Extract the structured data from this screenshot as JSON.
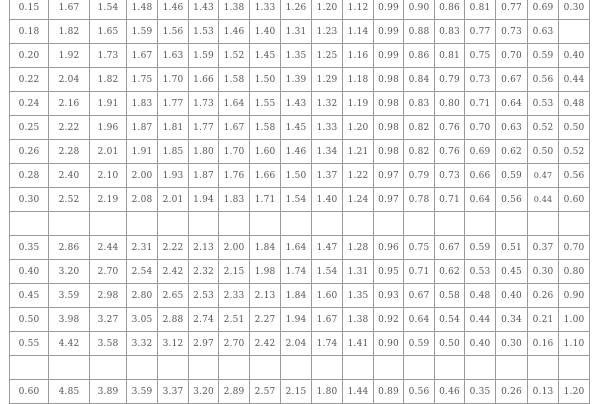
{
  "table": {
    "rows": [
      [
        "0.15",
        "1.67",
        "1.54",
        "1.48",
        "1.46",
        "1.43",
        "1.38",
        "1.33",
        "1.26",
        "1.20",
        "1.12",
        "0.99",
        "0.90",
        "0.86",
        "0.81",
        "0.77",
        "0.69",
        "0.30"
      ],
      [
        "0.18",
        "1.82",
        "1.65",
        "1.59",
        "1.56",
        "1.53",
        "1.46",
        "1.40",
        "1.31",
        "1.23",
        "1.14",
        "0.99",
        "0.88",
        "0.83",
        "0.77",
        "0.73",
        "0.63",
        ""
      ],
      [
        "0.20",
        "1.92",
        "1.73",
        "1.67",
        "1.63",
        "1.59",
        "1.52",
        "1.45",
        "1.35",
        "1.25",
        "1.16",
        "0.99",
        "0.86",
        "0.81",
        "0.75",
        "0.70",
        "0.59",
        "0.40"
      ],
      [
        "0.22",
        "2.04",
        "1.82",
        "1.75",
        "1.70",
        "1.66",
        "1.58",
        "1.50",
        "1.39",
        "1.29",
        "1.18",
        "0.98",
        "0.84",
        "0.79",
        "0.73",
        "0.67",
        "0.56",
        "0.44"
      ],
      [
        "0.24",
        "2.16",
        "1.91",
        "1.83",
        "1.77",
        "1.73",
        "1.64",
        "1.55",
        "1.43",
        "1.32",
        "1.19",
        "0.98",
        "0.83",
        "0.80",
        "0.71",
        "0.64",
        "0.53",
        "0.48"
      ],
      [
        "0.25",
        "2.22",
        "1.96",
        "1.87",
        "1.81",
        "1.77",
        "1.67",
        "1.58",
        "1.45",
        "1.33",
        "1.20",
        "0.98",
        "0.82",
        "0.76",
        "0.70",
        "0.63",
        "0.52",
        "0.50"
      ],
      [
        "0.26",
        "2.28",
        "2.01",
        "1.91",
        "1.85",
        "1.80",
        "1.70",
        "1.60",
        "1.46",
        "1.34",
        "1.21",
        "0.98",
        "0.82",
        "0.76",
        "0.69",
        "0.62",
        "0.50",
        "0.52"
      ],
      [
        "0.28",
        "2.40",
        "2.10",
        "2.00",
        "1.93",
        "1.87",
        "1.76",
        "1.66",
        "1.50",
        "1.37",
        "1.22",
        "0.97",
        "0.79",
        "0.73",
        "0.66",
        "0.59",
        "0.47",
        "0.56"
      ],
      [
        "0.30",
        "2.52",
        "2.19",
        "2.08",
        "2.01",
        "1.94",
        "1.83",
        "1.71",
        "1.54",
        "1.40",
        "1.24",
        "0.97",
        "0.78",
        "0.71",
        "0.64",
        "0.56",
        "0.44",
        "0.60"
      ],
      [
        "",
        "",
        "",
        "",
        "",
        "",
        "",
        "",
        "",
        "",
        "",
        "",
        "",
        "",
        "",
        "",
        "",
        ""
      ],
      [
        "0.35",
        "2.86",
        "2.44",
        "2.31",
        "2.22",
        "2.13",
        "2.00",
        "1.84",
        "1.64",
        "1.47",
        "1.28",
        "0.96",
        "0.75",
        "0.67",
        "0.59",
        "0.51",
        "0.37",
        "0.70"
      ],
      [
        "0.40",
        "3.20",
        "2.70",
        "2.54",
        "2.42",
        "2.32",
        "2.15",
        "1.98",
        "1.74",
        "1.54",
        "1.31",
        "0.95",
        "0.71",
        "0.62",
        "0.53",
        "0.45",
        "0.30",
        "0.80"
      ],
      [
        "0.45",
        "3.59",
        "2.98",
        "2.80",
        "2.65",
        "2.53",
        "2.33",
        "2.13",
        "1.84",
        "1.60",
        "1.35",
        "0.93",
        "0.67",
        "0.58",
        "0.48",
        "0.40",
        "0.26",
        "0.90"
      ],
      [
        "0.50",
        "3.98",
        "3.27",
        "3.05",
        "2.88",
        "2.74",
        "2.51",
        "2.27",
        "1.94",
        "1.67",
        "1.38",
        "0.92",
        "0.64",
        "0.54",
        "0.44",
        "0.34",
        "0.21",
        "1.00"
      ],
      [
        "0.55",
        "4.42",
        "3.58",
        "3.32",
        "3.12",
        "2.97",
        "2.70",
        "2.42",
        "2.04",
        "1.74",
        "1.41",
        "0.90",
        "0.59",
        "0.50",
        "0.40",
        "0.30",
        "0.16",
        "1.10"
      ],
      [
        "",
        "",
        "",
        "",
        "",
        "",
        "",
        "",
        "",
        "",
        "",
        "",
        "",
        "",
        "",
        "",
        "",
        ""
      ],
      [
        "0.60",
        "4.85",
        "3.89",
        "3.59",
        "3.37",
        "3.20",
        "2.89",
        "2.57",
        "2.15",
        "1.80",
        "1.44",
        "0.89",
        "0.56",
        "0.46",
        "0.35",
        "0.26",
        "0.13",
        "1.20"
      ]
    ]
  }
}
